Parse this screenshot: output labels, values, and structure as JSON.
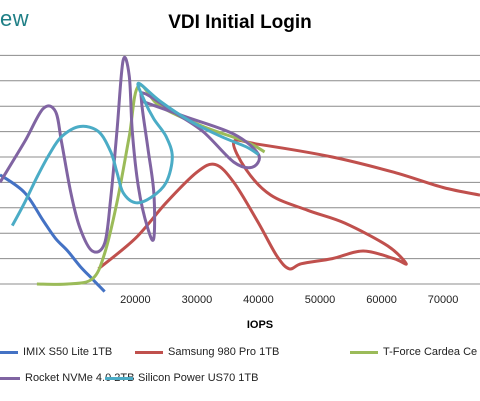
{
  "header": {
    "logo_text": "ew"
  },
  "chart_data": {
    "type": "line",
    "title": "VDI Initial Login",
    "xlabel": "IOPS",
    "xlim": [
      -2000,
      76000
    ],
    "ylim": [
      0,
      10
    ],
    "x_ticks": [
      {
        "value": 20000,
        "label": "20000"
      },
      {
        "value": 30000,
        "label": "30000"
      },
      {
        "value": 40000,
        "label": "40000"
      },
      {
        "value": 50000,
        "label": "50000"
      },
      {
        "value": 60000,
        "label": "60000"
      },
      {
        "value": 70000,
        "label": "70000"
      }
    ],
    "y_gridlines": [
      1,
      2,
      3,
      4,
      5,
      6,
      7,
      8,
      9
    ],
    "grid": true,
    "legend": "bottom",
    "series": [
      {
        "name": "IMIX S50 Lite 1TB",
        "color": "#4472c4",
        "points": [
          [
            -2000,
            4.3
          ],
          [
            2000,
            3.6
          ],
          [
            5000,
            2.5
          ],
          [
            7000,
            1.8
          ],
          [
            9000,
            1.3
          ],
          [
            11000,
            0.7
          ],
          [
            13000,
            0.2
          ],
          [
            15000,
            -0.3
          ]
        ]
      },
      {
        "name": "Samsung 980 Pro 1TB",
        "color": "#c0504d",
        "points": [
          [
            14000,
            0.6
          ],
          [
            20000,
            1.8
          ],
          [
            25000,
            3.2
          ],
          [
            30000,
            4.4
          ],
          [
            33000,
            4.7
          ],
          [
            36000,
            4.0
          ],
          [
            40000,
            2.4
          ],
          [
            43000,
            1.1
          ],
          [
            45000,
            0.6
          ],
          [
            47000,
            0.8
          ],
          [
            52000,
            1.0
          ],
          [
            57000,
            1.3
          ],
          [
            62000,
            1.0
          ],
          [
            64000,
            0.8
          ],
          [
            61000,
            1.5
          ],
          [
            54000,
            2.4
          ],
          [
            48000,
            2.9
          ],
          [
            42000,
            3.5
          ],
          [
            38000,
            4.5
          ],
          [
            36000,
            5.6
          ],
          [
            40000,
            5.5
          ],
          [
            52000,
            5.0
          ],
          [
            62000,
            4.4
          ],
          [
            70000,
            3.8
          ],
          [
            76000,
            3.5
          ]
        ]
      },
      {
        "name": "T-Force Cardea Ce",
        "color": "#9bbb59",
        "points": [
          [
            4000,
            0.0
          ],
          [
            9000,
            0.0
          ],
          [
            13000,
            0.2
          ],
          [
            15000,
            1.2
          ],
          [
            17000,
            3.2
          ],
          [
            19000,
            5.8
          ],
          [
            20500,
            7.8
          ],
          [
            24000,
            7.0
          ],
          [
            31000,
            6.2
          ],
          [
            38000,
            5.6
          ],
          [
            41000,
            5.2
          ]
        ]
      },
      {
        "name": "Rocket NVMe 4.0 2TB",
        "color": "#8064a2",
        "points": [
          [
            -2000,
            4.0
          ],
          [
            2000,
            5.6
          ],
          [
            5000,
            6.9
          ],
          [
            7000,
            6.8
          ],
          [
            8000,
            5.6
          ],
          [
            9500,
            3.6
          ],
          [
            11000,
            2.2
          ],
          [
            13000,
            1.3
          ],
          [
            15000,
            1.6
          ],
          [
            16000,
            3.4
          ],
          [
            17000,
            6.0
          ],
          [
            18000,
            8.8
          ],
          [
            19000,
            8.2
          ],
          [
            19500,
            6.0
          ],
          [
            20500,
            3.8
          ],
          [
            22000,
            2.2
          ],
          [
            23000,
            1.8
          ],
          [
            23000,
            3.6
          ],
          [
            22000,
            5.4
          ],
          [
            21000,
            7.2
          ],
          [
            21500,
            7.5
          ],
          [
            26000,
            6.8
          ],
          [
            31000,
            6.0
          ],
          [
            36000,
            4.8
          ],
          [
            39000,
            4.6
          ],
          [
            40000,
            5.1
          ],
          [
            36000,
            5.9
          ],
          [
            28000,
            6.6
          ],
          [
            21000,
            7.2
          ]
        ]
      },
      {
        "name": "Silicon Power US70 1TB",
        "color": "#4bacc6",
        "points": [
          [
            0,
            2.3
          ],
          [
            2000,
            3.2
          ],
          [
            4000,
            4.2
          ],
          [
            6000,
            5.1
          ],
          [
            8000,
            5.8
          ],
          [
            11000,
            6.2
          ],
          [
            14000,
            6.0
          ],
          [
            16000,
            5.2
          ],
          [
            17000,
            4.4
          ],
          [
            18000,
            3.6
          ],
          [
            20000,
            3.2
          ],
          [
            22500,
            3.4
          ],
          [
            25000,
            4.0
          ],
          [
            26000,
            5.0
          ],
          [
            25000,
            5.8
          ],
          [
            23000,
            6.5
          ],
          [
            21500,
            7.2
          ],
          [
            20500,
            7.9
          ],
          [
            24000,
            7.2
          ],
          [
            29000,
            6.4
          ],
          [
            34000,
            5.8
          ],
          [
            38000,
            5.4
          ],
          [
            40000,
            5.1
          ]
        ]
      }
    ]
  }
}
